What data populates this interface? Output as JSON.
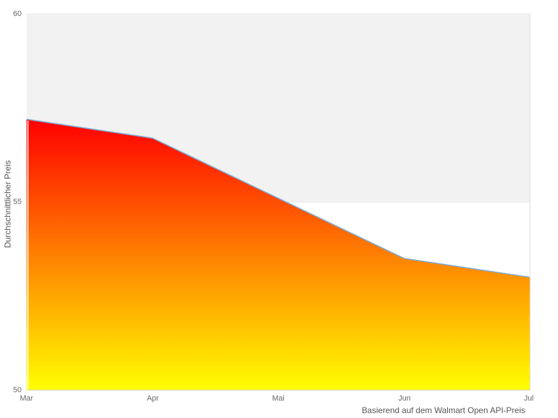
{
  "chart_data": {
    "type": "area",
    "title": "",
    "categories": [
      "Mar",
      "Apr",
      "Mai",
      "Jun",
      "Jul"
    ],
    "values": [
      57.2,
      56.7,
      55.1,
      53.5,
      53.0
    ],
    "series": [
      {
        "name": "Durchschnittlicher Preis",
        "values": [
          57.2,
          56.7,
          55.1,
          53.5,
          53.0
        ]
      }
    ],
    "xlabel": "Basierend auf dem Walmart Open API-Preis",
    "ylabel": "Durchschnittlicher Preis",
    "ylim": [
      50,
      60
    ],
    "y_ticks": [
      50,
      55,
      60
    ],
    "y_tick_labels": [
      "50",
      "55",
      "60"
    ],
    "grid": true,
    "legend": "none",
    "alternate_band": {
      "from": 55,
      "to": 60,
      "color": "#f2f2f2"
    },
    "colors": {
      "line": "#7fadd6",
      "gradient_top": "#ff0000",
      "gradient_bottom": "#ffff00",
      "grid_line": "#e6e6e6",
      "axis_line": "#cccccc",
      "plot_border": "#dddddd",
      "tick_label": "#666666",
      "axis_title": "#555555",
      "background": "#ffffff"
    }
  }
}
